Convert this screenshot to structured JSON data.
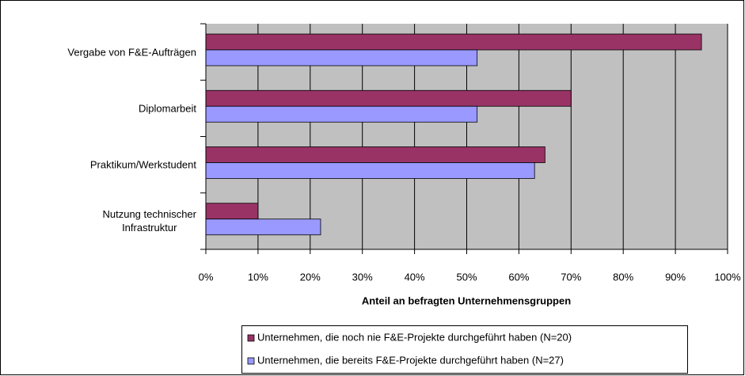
{
  "chart_data": {
    "type": "hbar",
    "categories": [
      "Vergabe von F&E-Aufträgen",
      "Diplomarbeit",
      "Praktikum/Werkstudent",
      "Nutzung technischer\nInfrastruktur"
    ],
    "series": [
      {
        "name": "Unternehmen, die noch nie F&E-Projekte durchgeführt haben (N=20)",
        "color": "#993366",
        "values": [
          95,
          70,
          65,
          10
        ]
      },
      {
        "name": "Unternehmen, die bereits F&E-Projekte durchgeführt haben (N=27)",
        "color": "#9999ff",
        "values": [
          52,
          52,
          63,
          22
        ]
      }
    ],
    "xlabel": "Anteil an befragten Unternehmensgruppen",
    "xlim": [
      0,
      100
    ],
    "xticks": [
      {
        "value": 0,
        "label": "0%"
      },
      {
        "value": 10,
        "label": "10%"
      },
      {
        "value": 20,
        "label": "20%"
      },
      {
        "value": 30,
        "label": "30%"
      },
      {
        "value": 40,
        "label": "40%"
      },
      {
        "value": 50,
        "label": "50%"
      },
      {
        "value": 60,
        "label": "60%"
      },
      {
        "value": 70,
        "label": "70%"
      },
      {
        "value": 80,
        "label": "80%"
      },
      {
        "value": 90,
        "label": "90%"
      },
      {
        "value": 100,
        "label": "100%"
      }
    ],
    "grid": true,
    "legend": "bottom"
  }
}
